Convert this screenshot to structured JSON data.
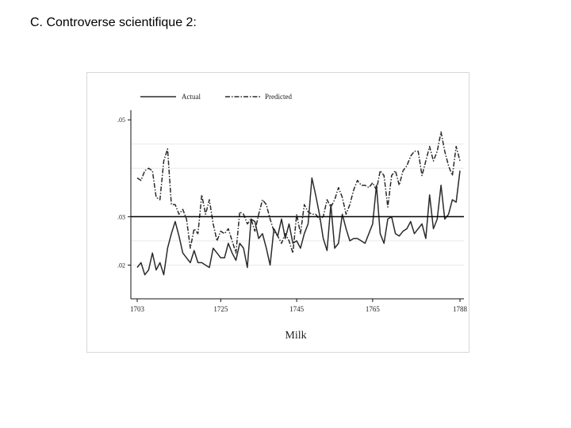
{
  "slide": {
    "title": "C. Controverse scientifique 2:"
  },
  "colors": {
    "grid": "#e3ebe8",
    "series": "#2a2a2a",
    "axis": "#111111",
    "baseline": "#000000"
  },
  "chart_data": {
    "type": "line",
    "title": "",
    "xlabel": "Milk",
    "ylabel": "",
    "xlim": [
      1703,
      1788
    ],
    "ylim": [
      0.015,
      0.052
    ],
    "x_ticks": [
      "1703",
      "1725",
      "1745",
      "1765",
      "1788"
    ],
    "y_ticks": [
      ".02",
      ".03",
      ".05"
    ],
    "grid": "horizontal",
    "legend_position": "top-left",
    "reference_line": 0.03,
    "series": [
      {
        "name": "Actual",
        "style": "solid",
        "x": [
          1703,
          1704,
          1705,
          1706,
          1707,
          1708,
          1709,
          1710,
          1711,
          1712,
          1713,
          1714,
          1715,
          1716,
          1717,
          1718,
          1719,
          1720,
          1721,
          1722,
          1723,
          1724,
          1725,
          1726,
          1727,
          1728,
          1729,
          1730,
          1731,
          1732,
          1733,
          1734,
          1735,
          1736,
          1737,
          1738,
          1739,
          1740,
          1741,
          1742,
          1743,
          1744,
          1745,
          1746,
          1747,
          1748,
          1749,
          1750,
          1751,
          1752,
          1753,
          1754,
          1755,
          1756,
          1757,
          1758,
          1759,
          1760,
          1761,
          1762,
          1763,
          1764,
          1765,
          1766,
          1767,
          1768,
          1769,
          1770,
          1771,
          1772,
          1773,
          1774,
          1775,
          1776,
          1777,
          1778,
          1779,
          1780,
          1781,
          1782,
          1783,
          1784,
          1785,
          1786,
          1787,
          1788
        ],
        "y": [
          0.0195,
          0.0205,
          0.018,
          0.019,
          0.0225,
          0.019,
          0.0205,
          0.018,
          0.0235,
          0.0265,
          0.029,
          0.026,
          0.0225,
          0.0215,
          0.0205,
          0.023,
          0.0205,
          0.0205,
          0.02,
          0.0195,
          0.0235,
          0.0225,
          0.0215,
          0.0215,
          0.0245,
          0.0225,
          0.021,
          0.0245,
          0.0235,
          0.0195,
          0.0295,
          0.029,
          0.0255,
          0.0265,
          0.0235,
          0.02,
          0.0275,
          0.026,
          0.0295,
          0.0255,
          0.0285,
          0.0245,
          0.025,
          0.0235,
          0.0265,
          0.0285,
          0.038,
          0.0345,
          0.0305,
          0.0255,
          0.023,
          0.0325,
          0.0235,
          0.0245,
          0.0305,
          0.0275,
          0.025,
          0.0255,
          0.0255,
          0.025,
          0.0245,
          0.0265,
          0.0285,
          0.0365,
          0.0265,
          0.0245,
          0.0295,
          0.03,
          0.0265,
          0.026,
          0.027,
          0.0275,
          0.029,
          0.0265,
          0.0275,
          0.0285,
          0.0255,
          0.0345,
          0.0275,
          0.0295,
          0.0365,
          0.0295,
          0.0305,
          0.0335,
          0.033,
          0.0395
        ],
        "y_hidden_note": ""
      },
      {
        "name": "Predicted",
        "style": "dash-dot",
        "x": [
          1703,
          1704,
          1705,
          1706,
          1707,
          1708,
          1709,
          1710,
          1711,
          1712,
          1713,
          1714,
          1715,
          1716,
          1717,
          1718,
          1719,
          1720,
          1721,
          1722,
          1723,
          1724,
          1725,
          1726,
          1727,
          1728,
          1729,
          1730,
          1731,
          1732,
          1733,
          1734,
          1735,
          1736,
          1737,
          1738,
          1739,
          1740,
          1741,
          1742,
          1743,
          1744,
          1745,
          1746,
          1747,
          1748,
          1749,
          1750,
          1751,
          1752,
          1753,
          1754,
          1755,
          1756,
          1757,
          1758,
          1759,
          1760,
          1761,
          1762,
          1763,
          1764,
          1765,
          1766,
          1767,
          1768,
          1769,
          1770,
          1771,
          1772,
          1773,
          1774,
          1775,
          1776,
          1777,
          1778,
          1779,
          1780,
          1781,
          1782,
          1783,
          1784,
          1785,
          1786,
          1787,
          1788
        ],
        "y": [
          0.038,
          0.0375,
          0.0395,
          0.04,
          0.0395,
          0.034,
          0.0335,
          0.0415,
          0.044,
          0.0325,
          0.0325,
          0.0305,
          0.0315,
          0.0295,
          0.0235,
          0.0275,
          0.0265,
          0.0345,
          0.0305,
          0.0335,
          0.0285,
          0.025,
          0.027,
          0.0265,
          0.0275,
          0.025,
          0.0225,
          0.031,
          0.0305,
          0.0285,
          0.0295,
          0.027,
          0.0305,
          0.0335,
          0.0325,
          0.0295,
          0.027,
          0.026,
          0.0245,
          0.0265,
          0.025,
          0.0225,
          0.0305,
          0.0265,
          0.0325,
          0.031,
          0.0305,
          0.0305,
          0.0295,
          0.03,
          0.0335,
          0.032,
          0.0335,
          0.036,
          0.034,
          0.0305,
          0.0325,
          0.0355,
          0.0375,
          0.0365,
          0.0365,
          0.036,
          0.037,
          0.0355,
          0.0395,
          0.0385,
          0.032,
          0.0385,
          0.0395,
          0.0365,
          0.0395,
          0.0405,
          0.0425,
          0.0435,
          0.0435,
          0.0385,
          0.0415,
          0.0445,
          0.0415,
          0.0435,
          0.0475,
          0.0435,
          0.0405,
          0.0385,
          0.0445,
          0.0415
        ]
      }
    ]
  }
}
